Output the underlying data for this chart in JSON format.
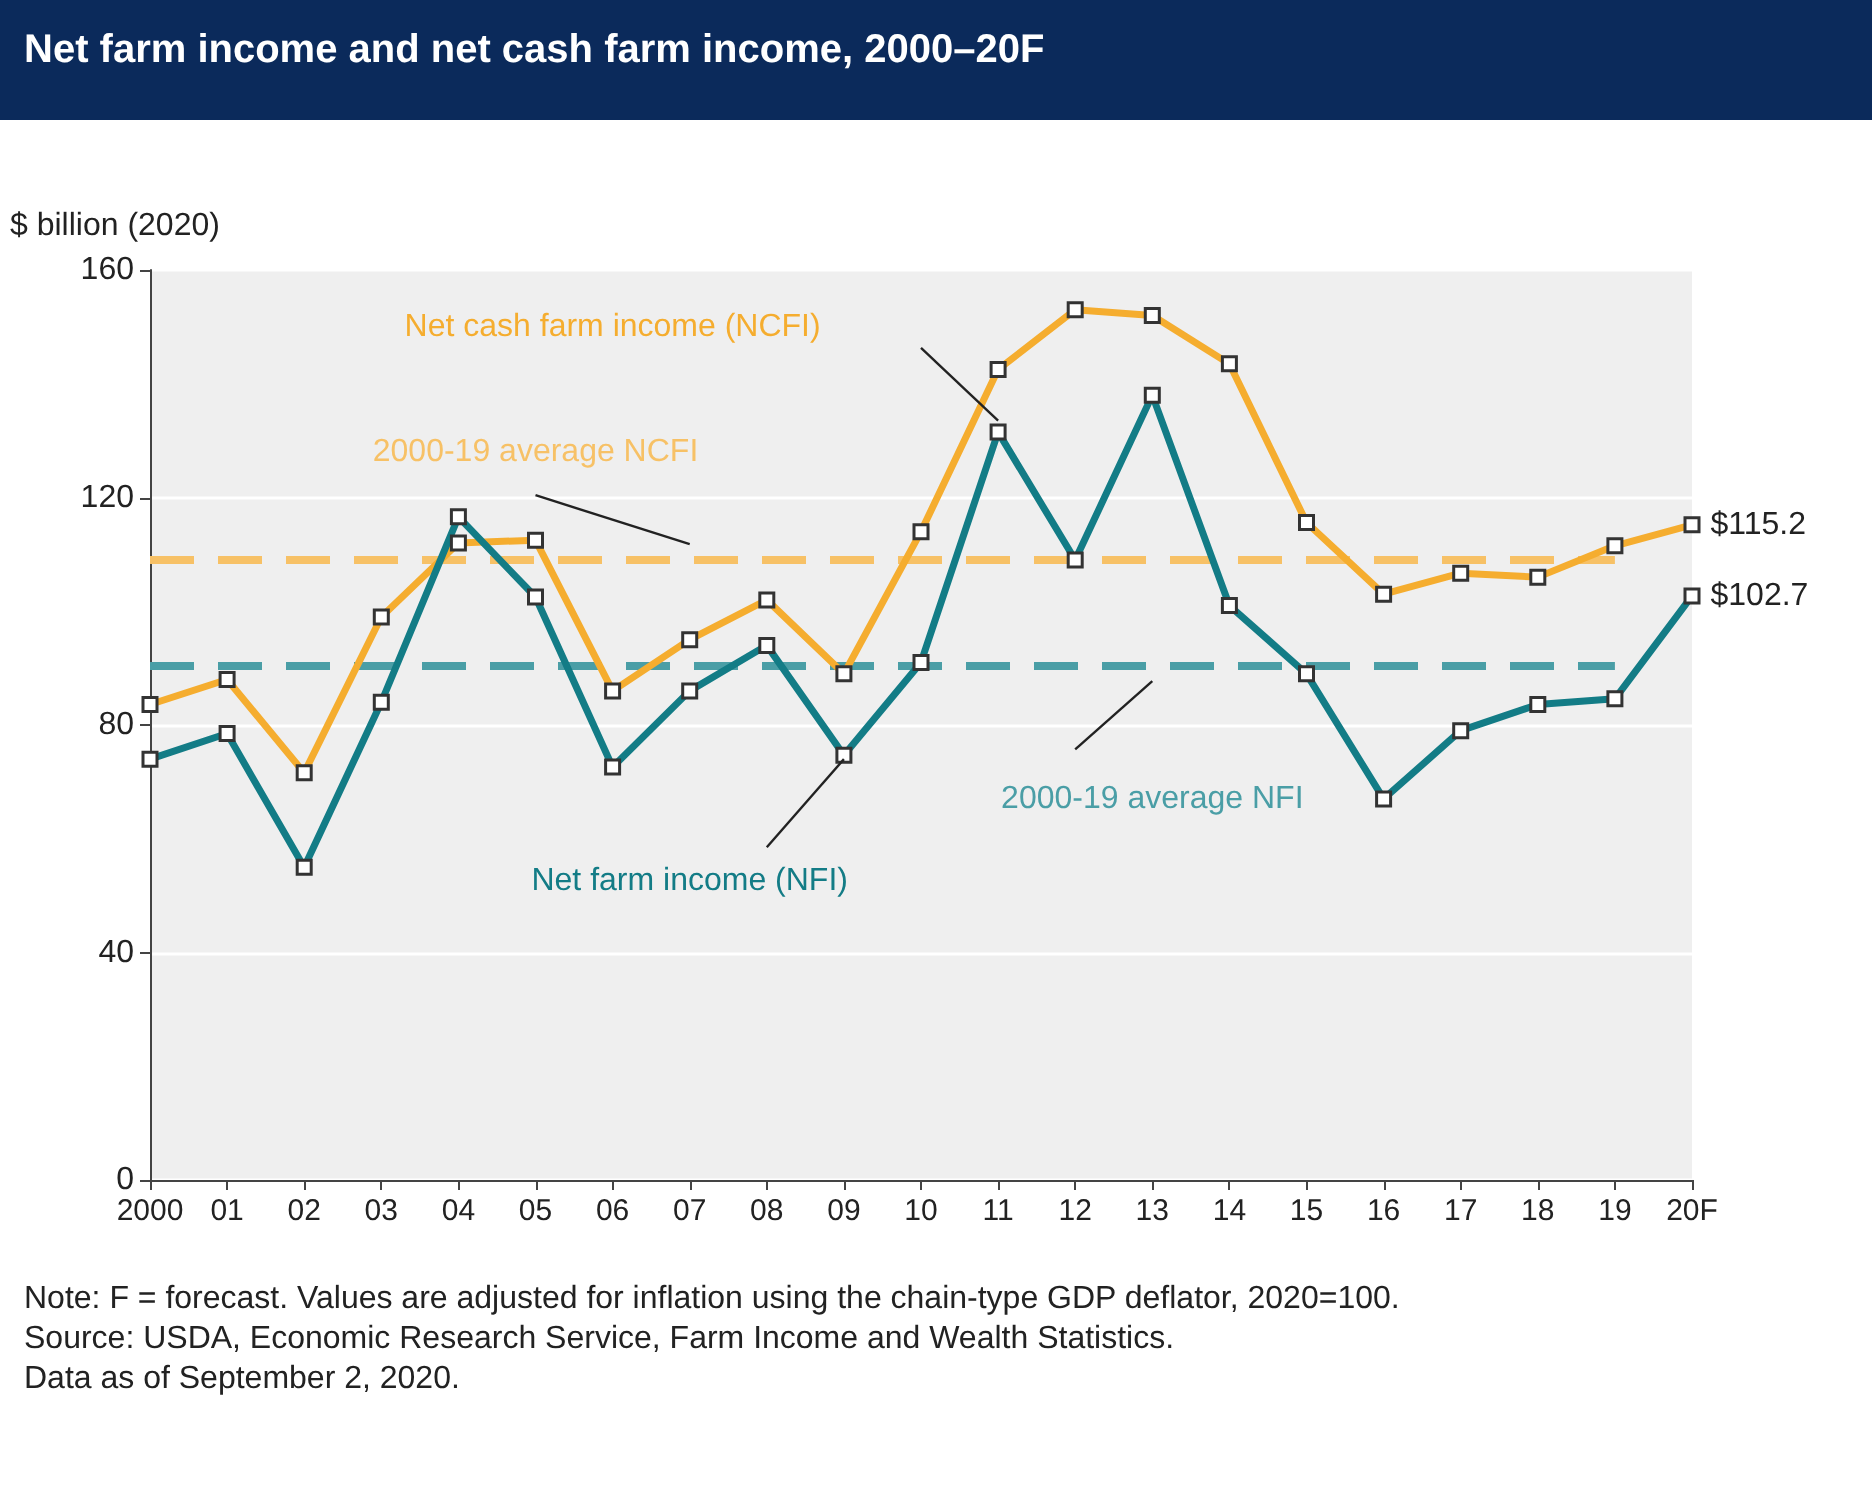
{
  "chart_data": {
    "type": "line",
    "title": "Net farm income and net cash farm income, 2000–20F",
    "ylabel": "$ billion (2020)",
    "categories": [
      "2000",
      "01",
      "02",
      "03",
      "04",
      "05",
      "06",
      "07",
      "08",
      "09",
      "10",
      "11",
      "12",
      "13",
      "14",
      "15",
      "16",
      "17",
      "18",
      "19",
      "20F"
    ],
    "series": [
      {
        "name": "Net cash farm income (NCFI)",
        "color": "#f5ad2f",
        "values": [
          83.6,
          88,
          71.6,
          99,
          112,
          112.5,
          86,
          95,
          102,
          89,
          114,
          142.5,
          153,
          152,
          143.5,
          115.6,
          103,
          106.7,
          106,
          111.5,
          115.2
        ],
        "value_labels": [
          null,
          null,
          null,
          null,
          null,
          null,
          null,
          null,
          null,
          null,
          null,
          null,
          null,
          null,
          null,
          null,
          null,
          null,
          null,
          null,
          "$115.2"
        ]
      },
      {
        "name": "Net farm income (NFI)",
        "color": "#137c86",
        "values": [
          74,
          78.5,
          55,
          84,
          116.6,
          102.5,
          72.6,
          86,
          94,
          74.7,
          91,
          131.5,
          109,
          138,
          101,
          89,
          67,
          79,
          83.6,
          84.6,
          102.7
        ],
        "value_labels": [
          null,
          null,
          null,
          null,
          null,
          null,
          null,
          null,
          null,
          null,
          null,
          null,
          null,
          null,
          null,
          null,
          null,
          null,
          null,
          null,
          "$102.7"
        ]
      }
    ],
    "ref_lines": [
      {
        "axis": "y",
        "value": 109,
        "label": "2000-19 average NCFI",
        "color": "#f7c166",
        "line_style": "dashed"
      },
      {
        "axis": "y",
        "value": 90.5,
        "label": "2000-19 average NFI",
        "color": "#4a9ea6",
        "line_style": "dashed"
      }
    ],
    "ylim": [
      0,
      160
    ],
    "yticks": [
      0,
      40,
      80,
      120,
      160
    ],
    "grid": "y",
    "legend": false,
    "marker": "square",
    "line_style": "solid",
    "annotations": [
      "Note: F = forecast. Values are adjusted for inflation using the chain-type GDP deflator, 2020=100.",
      "Source: USDA, Economic Research Service, Farm Income and Wealth Statistics.",
      "Data as of September 2, 2020."
    ]
  }
}
